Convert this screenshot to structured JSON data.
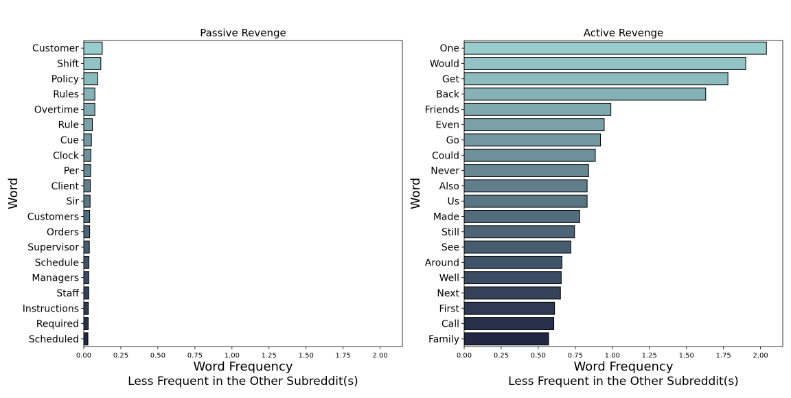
{
  "chart_data": [
    {
      "type": "bar",
      "orientation": "horizontal",
      "title": "Passive Revenge",
      "xlabel": "Word Frequency",
      "xlabel2": "Less Frequent in the Other Subreddit(s)",
      "ylabel": "Word",
      "xlim": [
        0,
        2.15
      ],
      "xticks": [
        "0.00",
        "0.25",
        "0.50",
        "0.75",
        "1.00",
        "1.25",
        "1.50",
        "1.75",
        "2.00"
      ],
      "grid": false,
      "palette": "light teal to dark navy gradient",
      "categories": [
        "Customer",
        "Shift",
        "Policy",
        "Rules",
        "Overtime",
        "Rule",
        "Cue",
        "Clock",
        "Per",
        "Client",
        "Sir",
        "Customers",
        "Orders",
        "Supervisor",
        "Schedule",
        "Managers",
        "Staff",
        "Instructions",
        "Required",
        "Scheduled"
      ],
      "values": [
        0.125,
        0.115,
        0.095,
        0.075,
        0.075,
        0.058,
        0.052,
        0.048,
        0.047,
        0.044,
        0.043,
        0.04,
        0.04,
        0.038,
        0.035,
        0.034,
        0.034,
        0.031,
        0.03,
        0.028
      ]
    },
    {
      "type": "bar",
      "orientation": "horizontal",
      "title": "Active Revenge",
      "xlabel": "Word Frequency",
      "xlabel2": "Less Frequent in the Other Subreddit(s)",
      "ylabel": "Word",
      "xlim": [
        0,
        2.15
      ],
      "xticks": [
        "0.00",
        "0.25",
        "0.50",
        "0.75",
        "1.00",
        "1.25",
        "1.50",
        "1.75",
        "2.00"
      ],
      "grid": false,
      "palette": "light teal to dark navy gradient",
      "categories": [
        "One",
        "Would",
        "Get",
        "Back",
        "Friends",
        "Even",
        "Go",
        "Could",
        "Never",
        "Also",
        "Us",
        "Made",
        "Still",
        "See",
        "Around",
        "Well",
        "Next",
        "First",
        "Call",
        "Family"
      ],
      "values": [
        2.04,
        1.9,
        1.78,
        1.63,
        0.99,
        0.945,
        0.92,
        0.885,
        0.84,
        0.83,
        0.83,
        0.78,
        0.745,
        0.72,
        0.66,
        0.655,
        0.65,
        0.61,
        0.605,
        0.57
      ]
    }
  ]
}
